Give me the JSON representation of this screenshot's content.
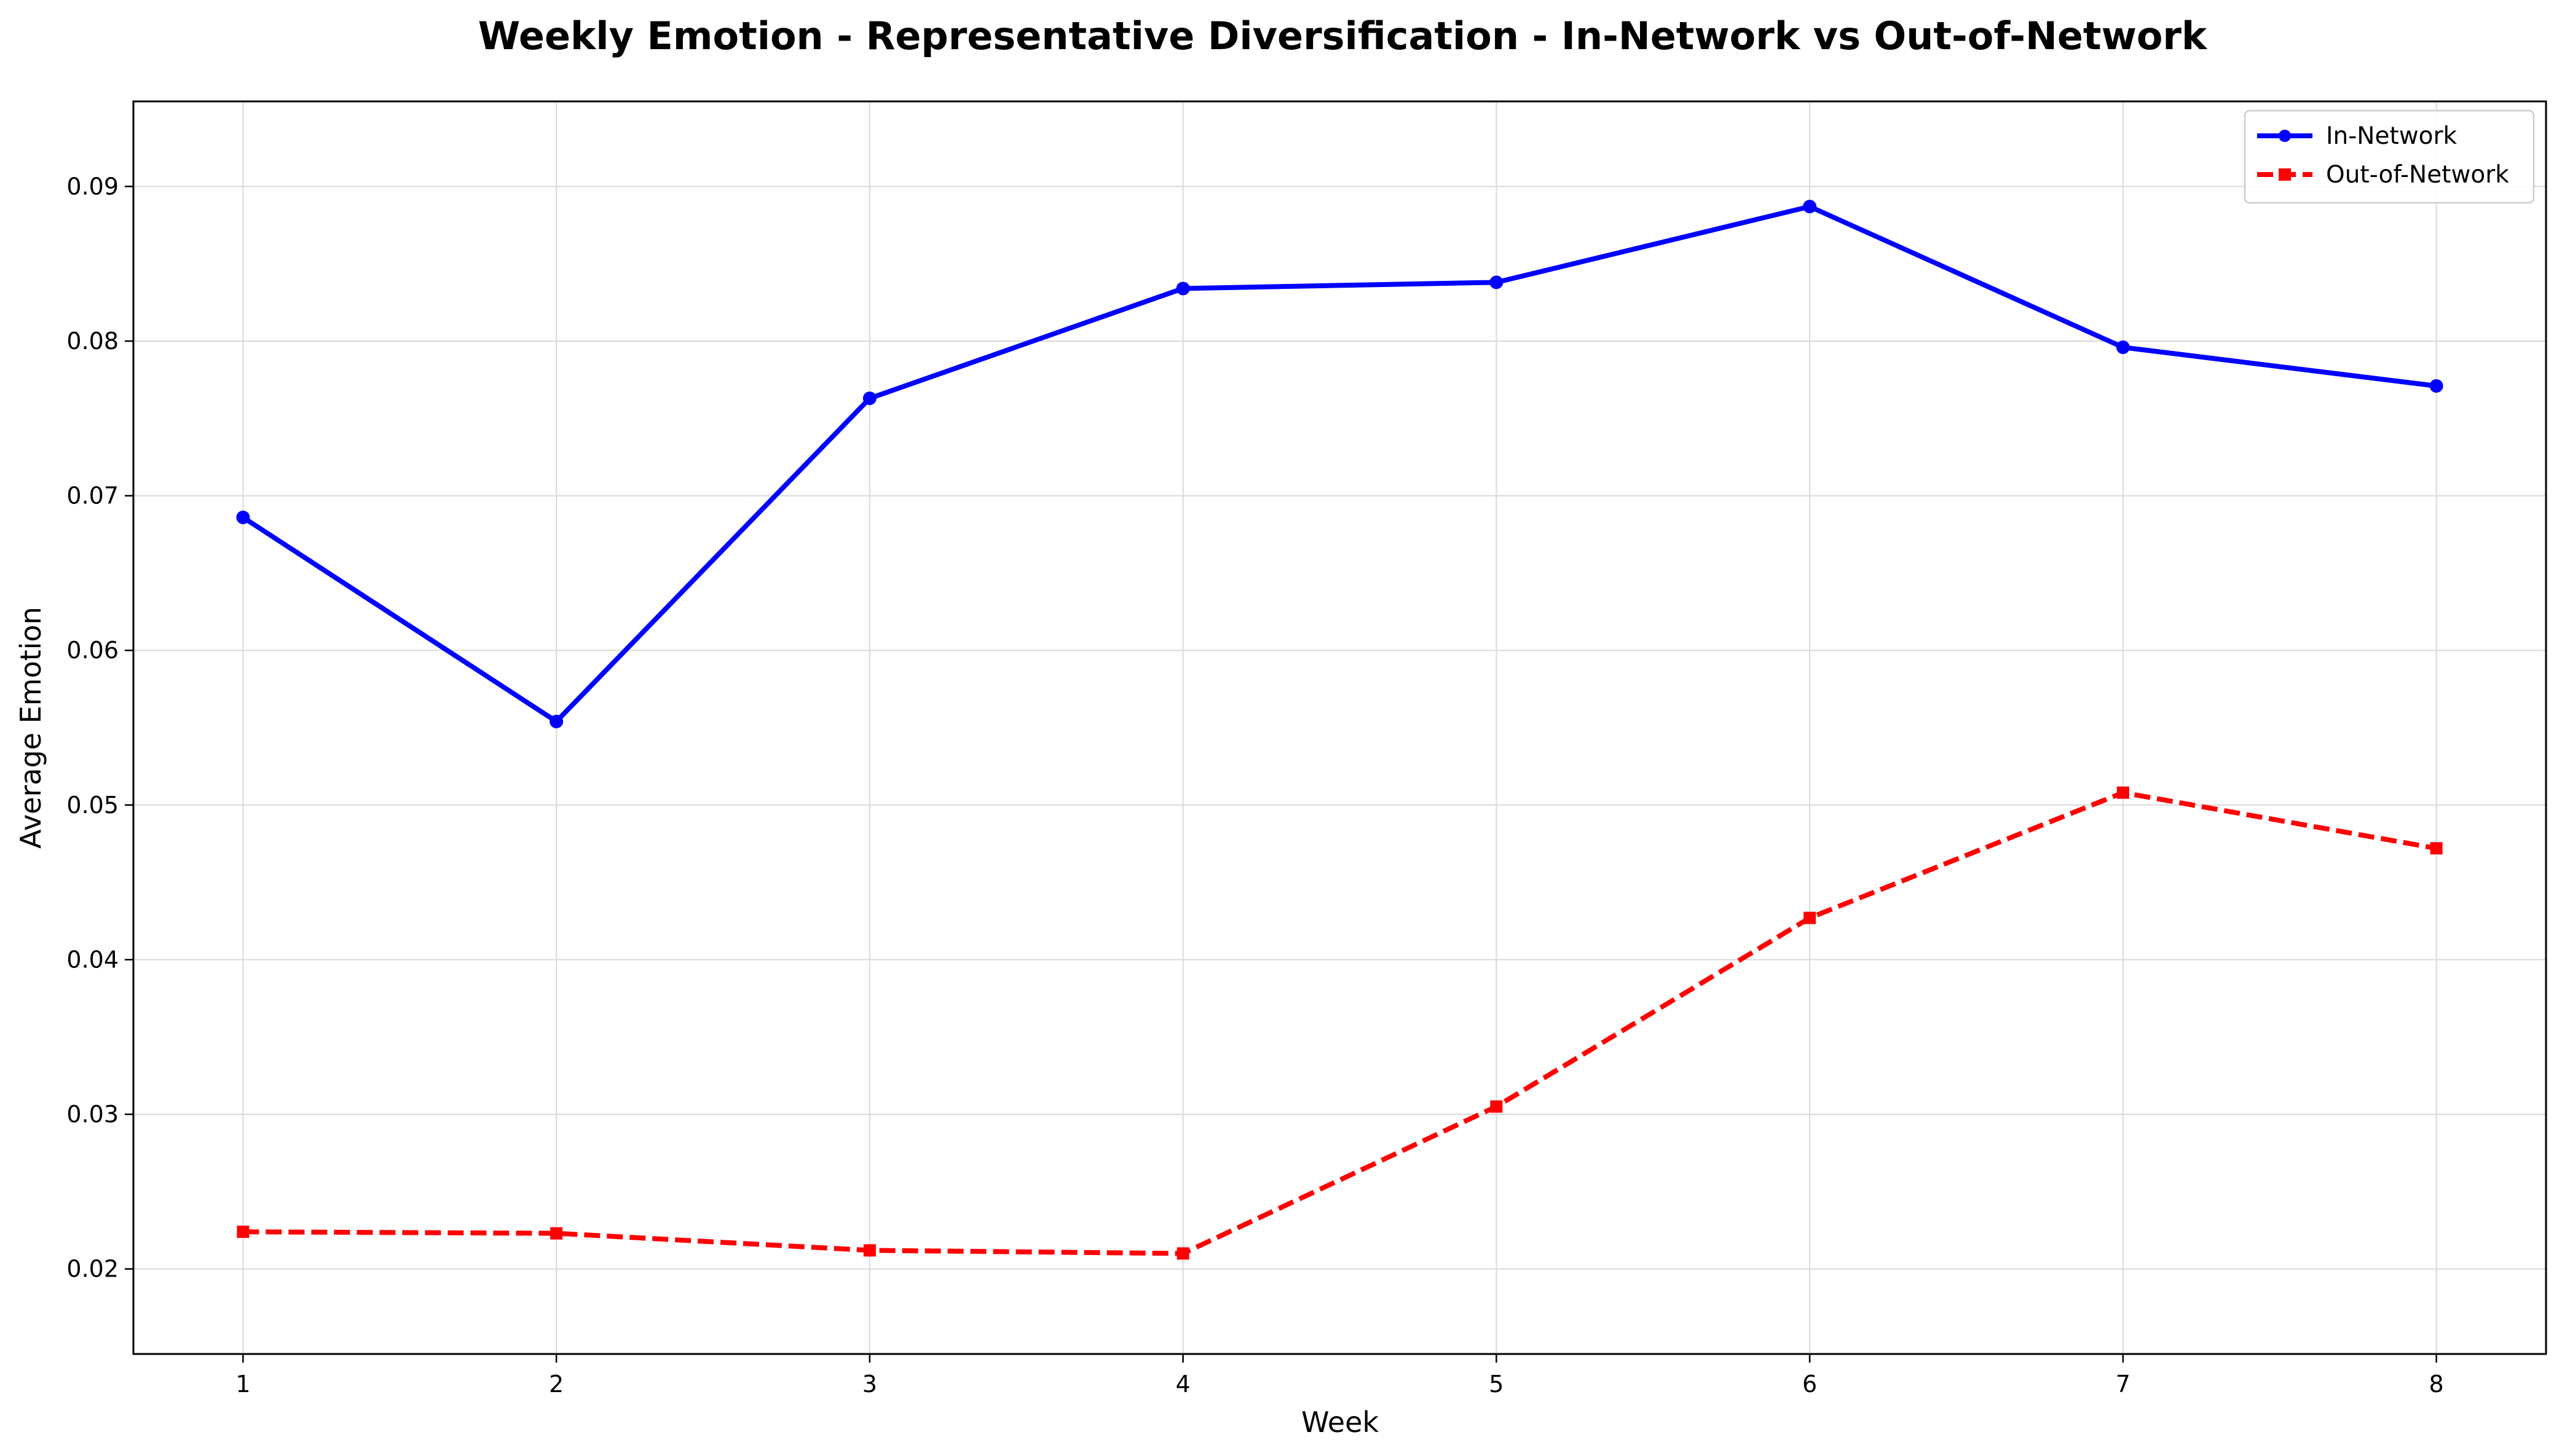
{
  "chart_data": {
    "type": "line",
    "title": "Weekly Emotion - Representative Diversification - In-Network vs Out-of-Network",
    "xlabel": "Week",
    "ylabel": "Average Emotion",
    "x": [
      1,
      2,
      3,
      4,
      5,
      6,
      7,
      8
    ],
    "xlim": [
      0.65,
      8.35
    ],
    "ylim": [
      0.0145,
      0.0955
    ],
    "yticks": [
      0.02,
      0.03,
      0.04,
      0.05,
      0.06,
      0.07,
      0.08,
      0.09
    ],
    "ytick_labels": [
      "0.02",
      "0.03",
      "0.04",
      "0.05",
      "0.06",
      "0.07",
      "0.08",
      "0.09"
    ],
    "xtick_labels": [
      "1",
      "2",
      "3",
      "4",
      "5",
      "6",
      "7",
      "8"
    ],
    "grid": true,
    "legend": "top-right",
    "series": [
      {
        "name": "In-Network",
        "color": "#0000ff",
        "line_style": "solid",
        "marker": "circle",
        "values": [
          0.0686,
          0.0554,
          0.0763,
          0.0834,
          0.0838,
          0.0887,
          0.0796,
          0.0771
        ]
      },
      {
        "name": "Out-of-Network",
        "color": "#ff0000",
        "line_style": "dashed",
        "marker": "square",
        "values": [
          0.0224,
          0.0223,
          0.0212,
          0.021,
          0.0305,
          0.0427,
          0.0508,
          0.0472
        ]
      }
    ]
  }
}
